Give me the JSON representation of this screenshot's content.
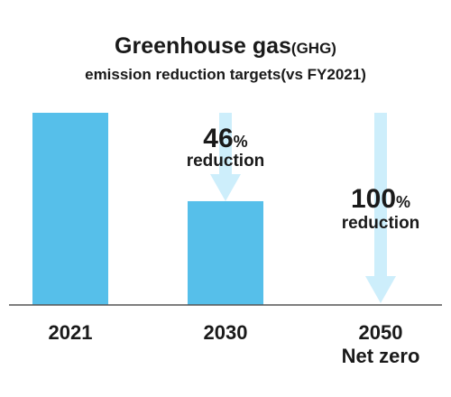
{
  "chart_data": {
    "type": "bar",
    "title_main": "Greenhouse gas",
    "title_suffix": "(GHG)",
    "subtitle": "emission reduction targets(vs FY2021)",
    "categories": [
      {
        "label": "2021",
        "sublabel": ""
      },
      {
        "label": "2030",
        "sublabel": ""
      },
      {
        "label": "2050",
        "sublabel": "Net zero"
      }
    ],
    "values": [
      100,
      54,
      0
    ],
    "ylim": [
      0,
      100
    ],
    "annotations": [
      {
        "category": "2030",
        "value": "46",
        "unit": "%",
        "text": "reduction"
      },
      {
        "category": "2050",
        "value": "100",
        "unit": "%",
        "text": "reduction"
      }
    ],
    "colors": {
      "bar": "#56bfea",
      "arrow": "#cdeefb",
      "axis": "#555555",
      "text": "#1a1a1a"
    }
  }
}
